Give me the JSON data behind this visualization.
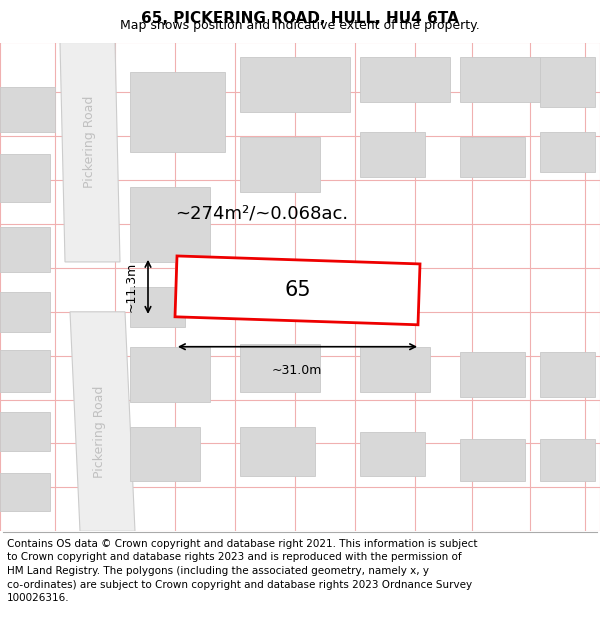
{
  "title": "65, PICKERING ROAD, HULL, HU4 6TA",
  "subtitle": "Map shows position and indicative extent of the property.",
  "footer": "Contains OS data © Crown copyright and database right 2021. This information is subject\nto Crown copyright and database rights 2023 and is reproduced with the permission of\nHM Land Registry. The polygons (including the associated geometry, namely x, y\nco-ordinates) are subject to Crown copyright and database rights 2023 Ordnance Survey\n100026316.",
  "map_bg": "#ffffff",
  "footer_bg": "#ffffff",
  "grid_color": "#f0b0b0",
  "road_fill": "#eeeeee",
  "road_line_color": "#cccccc",
  "block_fill": "#d8d8d8",
  "block_edge": "#c8c8c8",
  "prop_edge": "#ee0000",
  "prop_fill": "#ffffff",
  "dim_color": "#000000",
  "label_color": "#000000",
  "road_text_color": "#c0c0c0",
  "title_fontsize": 11,
  "subtitle_fontsize": 9,
  "footer_fontsize": 7.5,
  "area_fontsize": 13,
  "dim_fontsize": 9,
  "num_fontsize": 15,
  "road_fontsize": 9
}
